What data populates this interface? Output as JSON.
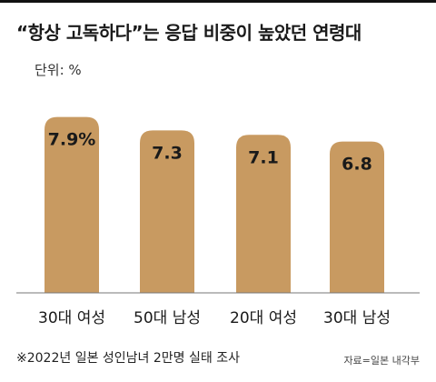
{
  "title": "“항상 고독하다”는 응답 비중이 높았던 연령대",
  "unit_label": "단위: %",
  "footer": {
    "source_note": "※2022년 일본 성인남녀 2만명 실태 조사",
    "credit": "자료=일본 내각부"
  },
  "colors": {
    "bar": "#c89a61",
    "baseline": "#777777",
    "label_text": "#1a1a1a"
  },
  "chart_data": {
    "type": "bar",
    "title": "“항상 고독하다”는 응답 비중이 높았던 연령대",
    "xlabel": "",
    "ylabel": "",
    "unit": "%",
    "categories": [
      "30대 여성",
      "50대 남성",
      "20대 여성",
      "30대 남성"
    ],
    "values": [
      7.9,
      7.3,
      7.1,
      6.8
    ],
    "value_labels": [
      "7.9%",
      "7.3",
      "7.1",
      "6.8"
    ],
    "ylim": [
      0,
      8.5
    ],
    "grid": false,
    "legend": "none"
  }
}
